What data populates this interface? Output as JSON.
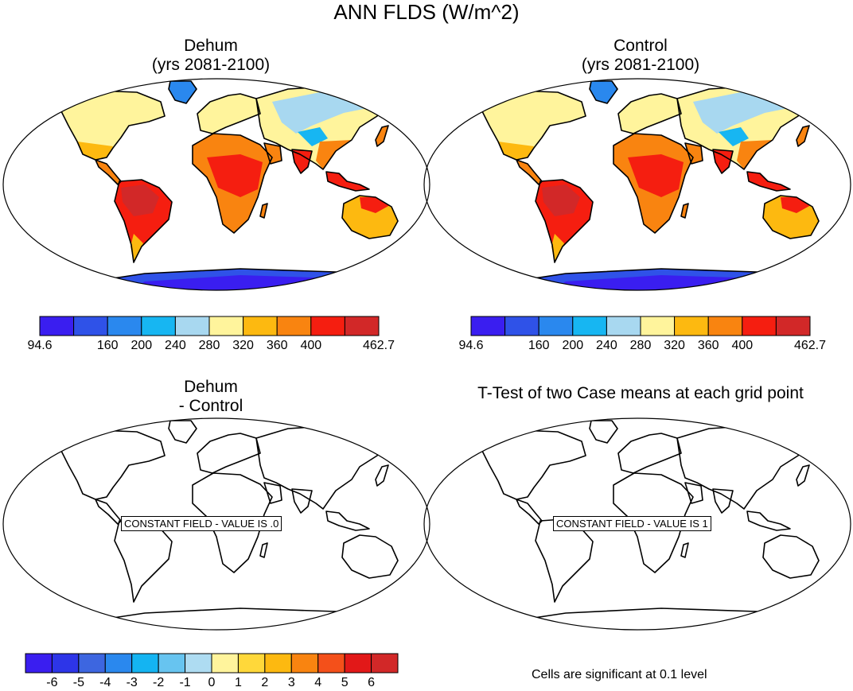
{
  "main_title": "ANN FLDS (W/m^2)",
  "panels": [
    {
      "title_line1": "Dehum",
      "title_line2": "(yrs 2081-2100)"
    },
    {
      "title_line1": "Control",
      "title_line2": "(yrs 2081-2100)"
    },
    {
      "title_line1": "Dehum",
      "title_line2": "- Control"
    },
    {
      "title_line1": "T-Test of two Case means at each grid point",
      "title_line2": ""
    }
  ],
  "constant_labels": [
    "CONSTANT FIELD - VALUE IS .0",
    "CONSTANT FIELD - VALUE IS 1"
  ],
  "significance_note": "Cells are significant at 0.1 level",
  "colorbars": {
    "abs": {
      "colors": [
        "#3a1ef0",
        "#2f52e8",
        "#2a88ee",
        "#17b6f2",
        "#a8d8f0",
        "#fff49c",
        "#fdb910",
        "#f98410",
        "#f51e10",
        "#d22828"
      ],
      "labels": [
        "94.6",
        "",
        "160",
        "200",
        "240",
        "280",
        "320",
        "360",
        "400",
        "",
        "462.7"
      ]
    },
    "diff": {
      "colors": [
        "#3a1ef0",
        "#2d35e8",
        "#3d66e0",
        "#2a88ee",
        "#14b4f2",
        "#67c4f0",
        "#aedcf2",
        "#fff49c",
        "#ffd83a",
        "#fdb910",
        "#f98410",
        "#f4501a",
        "#e21818",
        "#d22828"
      ],
      "labels": [
        "",
        "-6",
        "-5",
        "-4",
        "-3",
        "-2",
        "-1",
        "0",
        "1",
        "2",
        "3",
        "4",
        "5",
        "6",
        ""
      ]
    }
  },
  "chart_data": {
    "type": "heatmap",
    "title": "ANN FLDS (W/m^2)",
    "variable": "FLDS",
    "units": "W/m^2",
    "period": "yrs 2081-2100",
    "panels": [
      "Dehum",
      "Control",
      "Dehum - Control",
      "T-Test of two Case means at each grid point"
    ],
    "abs_levels": [
      94.6,
      160,
      200,
      240,
      280,
      320,
      360,
      400,
      462.7
    ],
    "diff_levels": [
      -6,
      -5,
      -4,
      -3,
      -2,
      -1,
      0,
      1,
      2,
      3,
      4,
      5,
      6
    ],
    "diff_constant_value": 0,
    "ttest_constant_value": 1,
    "significance_level": 0.1
  }
}
